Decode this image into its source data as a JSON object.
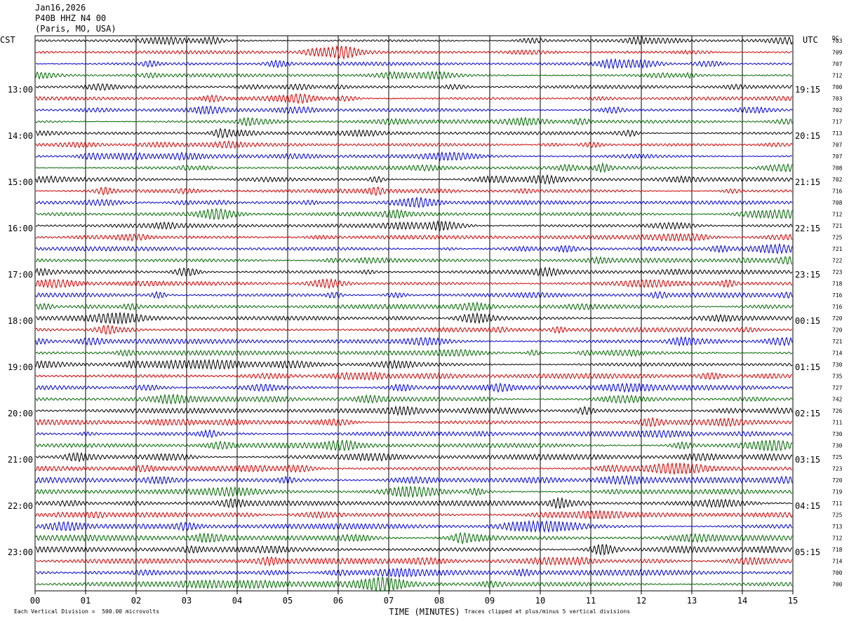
{
  "header": {
    "date": "Jan16,2026",
    "station": "P40B HHZ N4 00",
    "location": "(Paris, MO, USA)"
  },
  "left_timezone": "CST",
  "right_timezone": "UTC",
  "dc_label": "DC",
  "footer": {
    "scale_note": "Each Vertical Division =  500.00 microvolts",
    "xlabel": "TIME (MINUTES)",
    "clip_note": "Traces clipped at plus/minus 5 vertical divisions"
  },
  "colors": {
    "trace_cycle": [
      "#000000",
      "#cc0000",
      "#0000cc",
      "#006600"
    ],
    "grid": "#000000",
    "background": "#ffffff"
  },
  "chart_data": {
    "type": "line",
    "x": [
      0,
      1,
      2,
      3,
      4,
      5,
      6,
      7,
      8,
      9,
      10,
      11,
      12,
      13,
      14,
      15
    ],
    "x_tick_labels": [
      "00",
      "01",
      "02",
      "03",
      "04",
      "05",
      "06",
      "07",
      "08",
      "09",
      "10",
      "11",
      "12",
      "13",
      "14",
      "15"
    ],
    "xlim": [
      0,
      15
    ],
    "xlabel": "TIME (MINUTES)",
    "minutes_per_line": 15,
    "line_count": 48,
    "grid": true,
    "left_hour_labels": [
      "13:00",
      "14:00",
      "15:00",
      "16:00",
      "17:00",
      "18:00",
      "19:00",
      "20:00",
      "21:00",
      "22:00",
      "23:00"
    ],
    "right_hour_labels": [
      "19:15",
      "20:15",
      "21:15",
      "22:15",
      "23:15",
      "00:15",
      "01:15",
      "02:15",
      "03:15",
      "04:15",
      "05:15"
    ],
    "hour_label_first_line": 4,
    "lines_per_hour": 4,
    "dc_offsets": [
      "703",
      "709",
      "707",
      "712",
      "700",
      "703",
      "702",
      "717",
      "713",
      "707",
      "707",
      "708",
      "702",
      "716",
      "708",
      "712",
      "721",
      "725",
      "721",
      "722",
      "723",
      "718",
      "716",
      "716",
      "720",
      "720",
      "721",
      "714",
      "730",
      "735",
      "727",
      "742",
      "726",
      "711",
      "730",
      "730",
      "725",
      "723",
      "720",
      "719",
      "711",
      "725",
      "713",
      "712",
      "718",
      "714",
      "700",
      "700"
    ]
  }
}
